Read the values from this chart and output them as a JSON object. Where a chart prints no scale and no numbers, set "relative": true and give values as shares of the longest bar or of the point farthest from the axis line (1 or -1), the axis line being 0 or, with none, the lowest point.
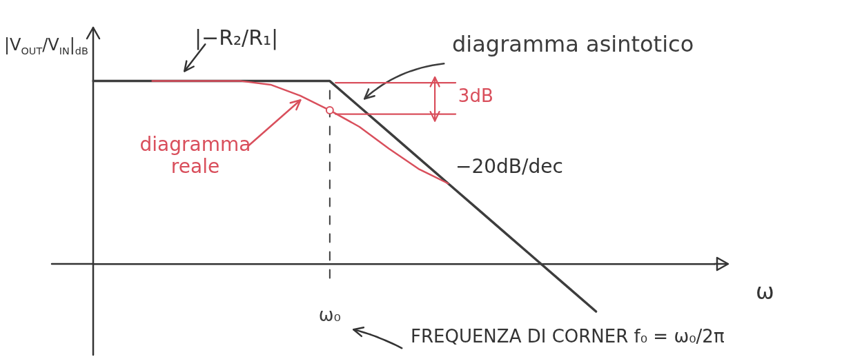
{
  "chart_data": {
    "type": "line",
    "relative": true,
    "xlabel": "ω",
    "ylabel": "|V$_{OUT}$/V$_{IN}$|$_{dB}$",
    "categories": [
      null,
      null,
      null,
      null,
      null,
      null,
      null,
      null,
      null,
      null,
      null,
      null,
      null,
      null,
      null,
      null,
      null,
      null,
      null,
      null,
      null,
      null
    ],
    "series": [
      {
        "name": "diagramma asintotico",
        "color": "#3d3d3d",
        "values": [
          1,
          1,
          1,
          1,
          1,
          1,
          1,
          1,
          1,
          0.86,
          0.72,
          0.58,
          0.44,
          0.3,
          0.16,
          0.02,
          -0.12,
          -0.26,
          null,
          null,
          null,
          null
        ]
      },
      {
        "name": "diagramma reale",
        "color": "#d94f5c",
        "values": [
          null,
          null,
          1,
          1,
          1,
          1,
          0.98,
          0.92,
          0.84,
          0.75,
          0.63,
          0.52,
          0.44,
          null,
          null,
          null,
          null,
          null,
          null,
          null,
          null,
          null
        ]
      },
      {
        "color": "#d94f5c",
        "marker": "circle",
        "values": [
          null,
          null,
          null,
          null,
          null,
          null,
          null,
          null,
          0.84,
          null,
          null,
          null,
          null,
          null,
          null,
          null,
          null,
          null,
          null,
          null,
          null,
          null
        ]
      }
    ],
    "ref_lines": [
      {
        "axis": "x",
        "label": "ω₀",
        "color": "#3d3d3d",
        "line_style": "dashed"
      }
    ],
    "annotations": [
      "|−R₂/R₁|",
      "3dB",
      "−20dB/dec",
      "FREQUENZA DI CORNER f₀ = ω₀/2π"
    ],
    "legend": false
  }
}
